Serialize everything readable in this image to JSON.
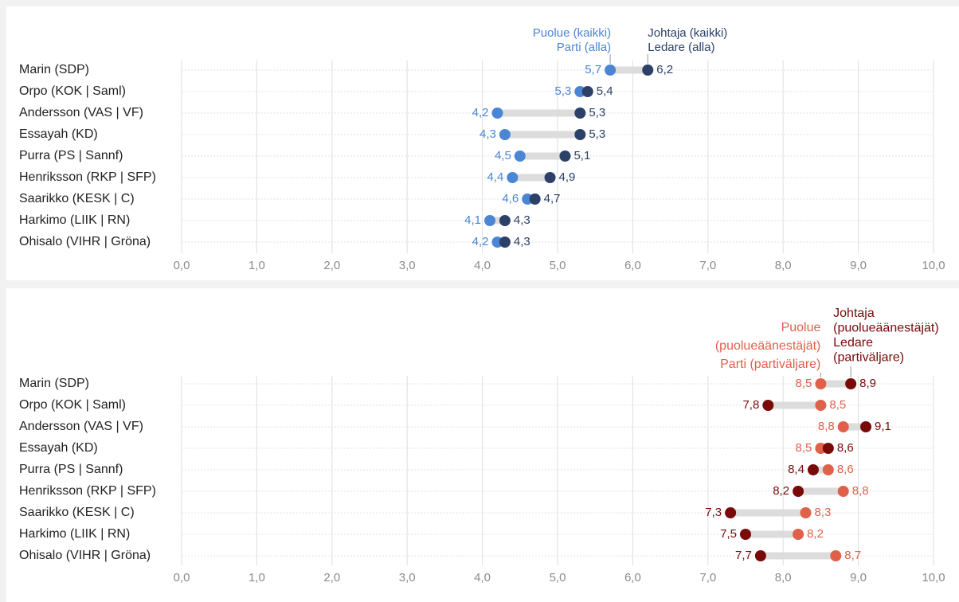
{
  "chart_data": [
    {
      "type": "dumbbell",
      "xlim": [
        0,
        10
      ],
      "x_ticks": [
        "0,0",
        "1,0",
        "2,0",
        "3,0",
        "4,0",
        "5,0",
        "6,0",
        "7,0",
        "8,0",
        "9,0",
        "10,0"
      ],
      "grid": "vertical",
      "categories": [
        "Marin (SDP)",
        "Orpo (KOK | Saml)",
        "Andersson (VAS | VF)",
        "Essayah (KD)",
        "Purra (PS | Sannf)",
        "Henriksson (RKP | SFP)",
        "Saarikko (KESK | C)",
        "Harkimo (LIIK | RN)",
        "Ohisalo (VIHR | Gröna)"
      ],
      "series": [
        {
          "name": "Puolue (kaikki) Parti (alla)",
          "label_lines": [
            "Puolue (kaikki)",
            "Parti (alla)"
          ],
          "color": "#4a86d4",
          "values": [
            5.7,
            5.3,
            4.2,
            4.3,
            4.5,
            4.4,
            4.6,
            4.1,
            4.2
          ],
          "labels": [
            "5,7",
            "5,3",
            "4,2",
            "4,3",
            "4,5",
            "4,4",
            "4,6",
            "4,1",
            "4,2"
          ]
        },
        {
          "name": "Johtaja (kaikki) Ledare (alla)",
          "label_lines": [
            "Johtaja (kaikki)",
            "Ledare (alla)"
          ],
          "color": "#2c4068",
          "values": [
            6.2,
            5.4,
            5.3,
            5.3,
            5.1,
            4.9,
            4.7,
            4.3,
            4.3
          ],
          "labels": [
            "6,2",
            "5,4",
            "5,3",
            "5,3",
            "5,1",
            "4,9",
            "4,7",
            "4,3",
            "4,3"
          ]
        }
      ]
    },
    {
      "type": "dumbbell",
      "xlim": [
        0,
        10
      ],
      "x_ticks": [
        "0,0",
        "1,0",
        "2,0",
        "3,0",
        "4,0",
        "5,0",
        "6,0",
        "7,0",
        "8,0",
        "9,0",
        "10,0"
      ],
      "grid": "vertical",
      "categories": [
        "Marin (SDP)",
        "Orpo (KOK | Saml)",
        "Andersson (VAS | VF)",
        "Essayah (KD)",
        "Purra (PS | Sannf)",
        "Henriksson (RKP | SFP)",
        "Saarikko (KESK | C)",
        "Harkimo (LIIK | RN)",
        "Ohisalo (VIHR | Gröna)"
      ],
      "series": [
        {
          "name": "Puolue (puolueäänestäjät) Parti (partiväljare)",
          "label_lines": [
            "Puolue",
            "(puolueäänestäjät)",
            "Parti (partiväljare)"
          ],
          "color": "#e0604a",
          "values": [
            8.5,
            8.5,
            8.8,
            8.5,
            8.6,
            8.8,
            8.3,
            8.2,
            8.7
          ],
          "labels": [
            "8,5",
            "8,5",
            "8,8",
            "8,5",
            "8,6",
            "8,8",
            "8,3",
            "8,2",
            "8,7"
          ]
        },
        {
          "name": "Johtaja (puolueäänestäjät) Ledare (partiväljare)",
          "label_lines": [
            "Johtaja",
            "(puolueäänestäjät)",
            "Ledare",
            "(partiväljare)"
          ],
          "color": "#7a0a0a",
          "values": [
            8.9,
            7.8,
            9.1,
            8.6,
            8.4,
            8.2,
            7.3,
            7.5,
            7.7
          ],
          "labels": [
            "8,9",
            "7,8",
            "9,1",
            "8,6",
            "8,4",
            "8,2",
            "7,3",
            "7,5",
            "7,7"
          ]
        }
      ]
    }
  ]
}
